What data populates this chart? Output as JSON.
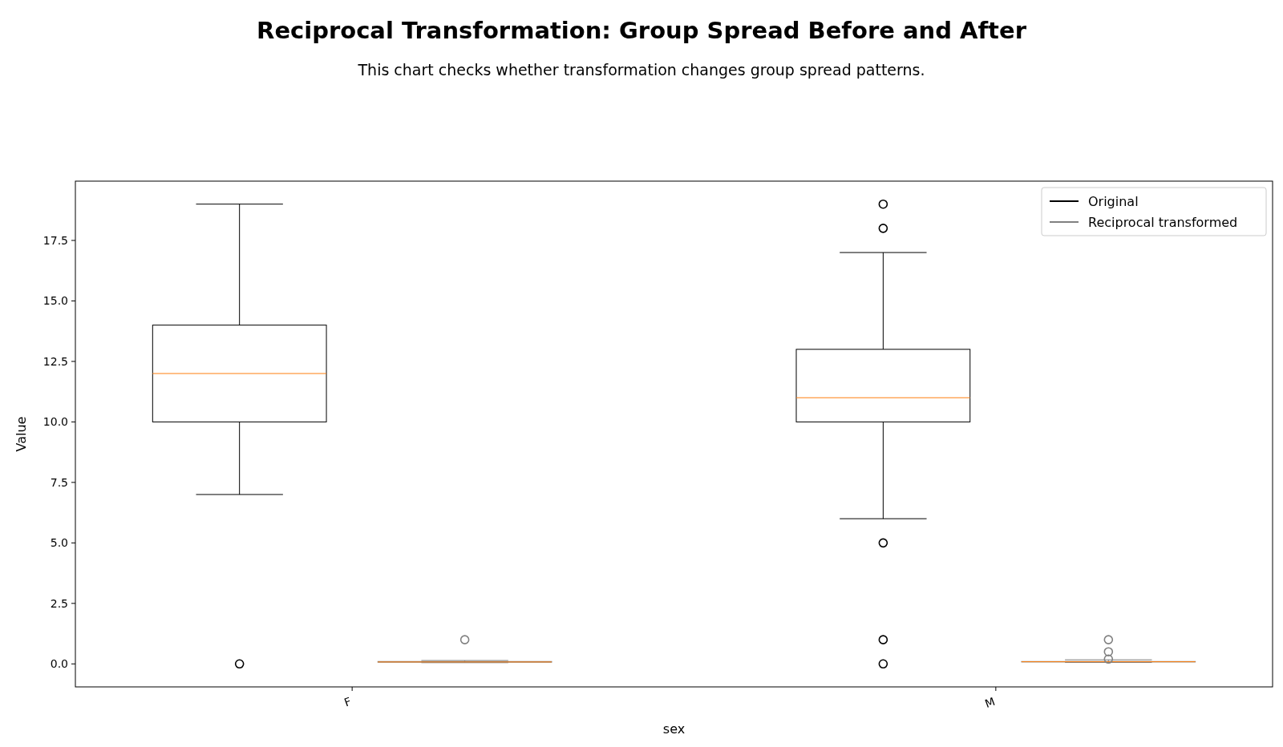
{
  "chart_data": {
    "type": "box",
    "title": "Reciprocal Transformation: Group Spread Before and After",
    "subtitle": "This chart checks whether transformation changes group spread patterns.",
    "xlabel": "sex",
    "ylabel": "Value",
    "categories": [
      "F",
      "M"
    ],
    "series": [
      {
        "name": "Original",
        "color": "#000000",
        "boxes": [
          {
            "low": 7,
            "q1": 10,
            "median": 12,
            "q3": 14,
            "high": 19,
            "outliers": [
              0
            ]
          },
          {
            "low": 6,
            "q1": 10,
            "median": 11,
            "q3": 13,
            "high": 17,
            "outliers": [
              18,
              19,
              5,
              1,
              0
            ]
          }
        ]
      },
      {
        "name": "Reciprocal transformed",
        "color": "#808080",
        "boxes": [
          {
            "low": 0.05,
            "q1": 0.07,
            "median": 0.08,
            "q3": 0.1,
            "high": 0.14,
            "outliers": [
              1
            ]
          },
          {
            "low": 0.06,
            "q1": 0.08,
            "median": 0.09,
            "q3": 0.1,
            "high": 0.17,
            "outliers": [
              1,
              0.5,
              0.2
            ]
          }
        ]
      }
    ],
    "ylim": [
      -0.95,
      19.95
    ],
    "yticks": [
      {
        "value": 0,
        "label": "0.0"
      },
      {
        "value": 2.5,
        "label": "2.5"
      },
      {
        "value": 5,
        "label": "5.0"
      },
      {
        "value": 7.5,
        "label": "7.5"
      },
      {
        "value": 10,
        "label": "10.0"
      },
      {
        "value": 12.5,
        "label": "12.5"
      },
      {
        "value": 15,
        "label": "15.0"
      },
      {
        "value": 17.5,
        "label": "17.5"
      }
    ],
    "legend": "top right",
    "grid": false
  }
}
